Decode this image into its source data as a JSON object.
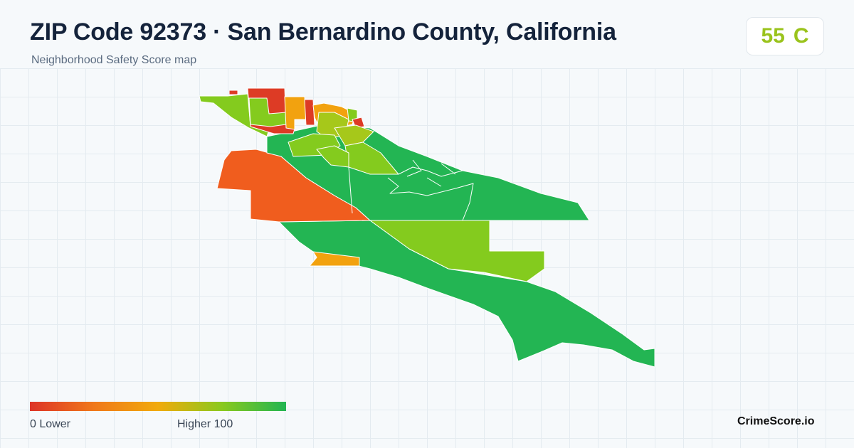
{
  "header": {
    "title": "ZIP Code 92373 · San Bernardino County, California",
    "subtitle": "Neighborhood Safety Score map"
  },
  "score": {
    "value": "55",
    "grade": "C",
    "color": "#9ac31c"
  },
  "legend": {
    "min_label": "0  Lower",
    "max_label": "Higher  100",
    "colors": [
      "#dd3327",
      "#f0781a",
      "#f1aa0c",
      "#8ac91e",
      "#22b552"
    ]
  },
  "footer": {
    "brand": "CrimeScore.io"
  },
  "map_colors": {
    "red": "#dd3b25",
    "orange_red": "#f05d1e",
    "orange": "#f2a20f",
    "yellow_green": "#a6c81a",
    "light_green": "#84cb1e",
    "green": "#23b553",
    "border": "#ffffff"
  }
}
